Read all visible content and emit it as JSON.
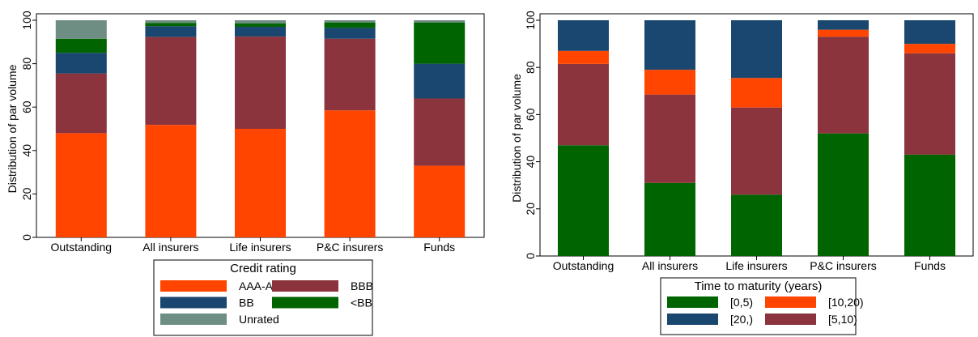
{
  "chart_data": [
    {
      "type": "bar",
      "stacked": true,
      "categories": [
        "Outstanding",
        "All insurers",
        "Life insurers",
        "P&C insurers",
        "Funds"
      ],
      "ylabel": "Distribution of par volume",
      "xlabel": "",
      "ylim": [
        0,
        100
      ],
      "yticks": [
        0,
        20,
        40,
        60,
        80,
        100
      ],
      "legend": {
        "title": "Credit rating",
        "position": "bottom",
        "columns": 2
      },
      "series": [
        {
          "name": "AAA-A",
          "color": "#ff4500",
          "values": [
            48.0,
            51.8,
            50.0,
            58.5,
            33.0
          ]
        },
        {
          "name": "BBB",
          "color": "#8b343d",
          "values": [
            27.5,
            40.5,
            42.5,
            33.0,
            31.0
          ]
        },
        {
          "name": "BB",
          "color": "#1a476f",
          "values": [
            9.5,
            5.0,
            4.5,
            5.0,
            16.0
          ]
        },
        {
          "name": "<BB",
          "color": "#006400",
          "values": [
            6.5,
            1.5,
            1.5,
            2.5,
            19.0
          ]
        },
        {
          "name": "Unrated",
          "color": "#6e8e84",
          "values": [
            8.5,
            1.2,
            1.5,
            1.0,
            1.0
          ]
        }
      ]
    },
    {
      "type": "bar",
      "stacked": true,
      "categories": [
        "Outstanding",
        "All insurers",
        "Life insurers",
        "P&C insurers",
        "Funds"
      ],
      "ylabel": "Distribution of par volume",
      "xlabel": "",
      "ylim": [
        0,
        100
      ],
      "yticks": [
        0,
        20,
        40,
        60,
        80,
        100
      ],
      "legend": {
        "title": "Time to maturity (years)",
        "position": "bottom",
        "columns": 2
      },
      "series": [
        {
          "name": "[0,5)",
          "color": "#006400",
          "values": [
            47.0,
            31.0,
            26.0,
            52.0,
            43.0
          ]
        },
        {
          "name": "[5,10)",
          "color": "#8b343d",
          "values": [
            34.5,
            37.5,
            37.0,
            41.0,
            43.0
          ]
        },
        {
          "name": "[10,20)",
          "color": "#ff4500",
          "values": [
            5.5,
            10.5,
            12.5,
            3.0,
            4.0
          ]
        },
        {
          "name": "[20,)",
          "color": "#1a476f",
          "values": [
            13.0,
            21.0,
            24.5,
            4.0,
            10.0
          ]
        }
      ],
      "legend_order": [
        "[0,5)",
        "[10,20)",
        "[20,)",
        "[5,10)"
      ]
    }
  ]
}
